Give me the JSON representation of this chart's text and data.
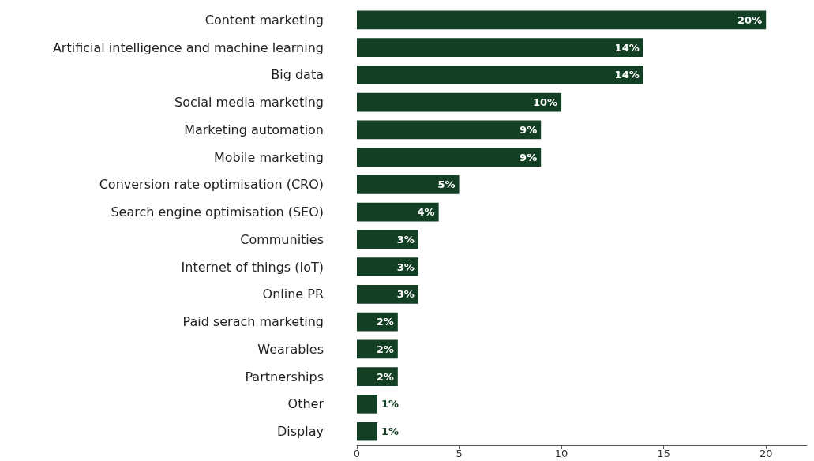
{
  "chart_data": {
    "type": "bar",
    "orientation": "horizontal",
    "categories": [
      "Content marketing",
      "Artificial intelligence and machine learning",
      "Big data",
      "Social media marketing",
      "Marketing automation",
      "Mobile marketing",
      "Conversion rate optimisation (CRO)",
      "Search engine optimisation (SEO)",
      "Communities",
      "Internet of things (IoT)",
      "Online PR",
      "Paid serach marketing",
      "Wearables",
      "Partnerships",
      "Other",
      "Display"
    ],
    "values": [
      20,
      14,
      14,
      10,
      9,
      9,
      5,
      4,
      3,
      3,
      3,
      2,
      2,
      2,
      1,
      1
    ],
    "value_labels": [
      "20%",
      "14%",
      "14%",
      "10%",
      "9%",
      "9%",
      "5%",
      "4%",
      "3%",
      "3%",
      "3%",
      "2%",
      "2%",
      "2%",
      "1%",
      "1%"
    ],
    "color": "#133f24",
    "xlim": [
      0,
      22
    ],
    "xticks": [
      0,
      5,
      10,
      15,
      20
    ],
    "grid": false
  }
}
